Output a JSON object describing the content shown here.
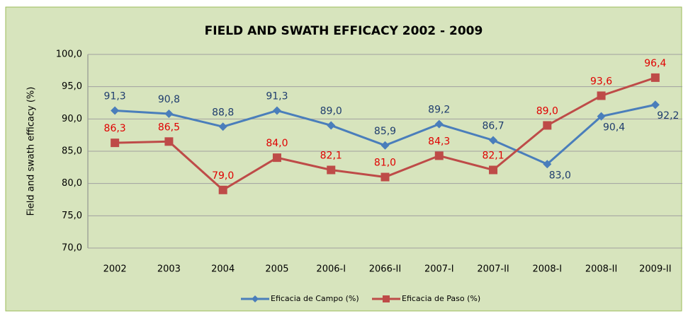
{
  "chart_data": {
    "type": "line",
    "title": "FIELD AND SWATH EFFICACY 2002 - 2009",
    "y_label": "Field and swath efficacy (%)",
    "categories": [
      "2002",
      "2003",
      "2004",
      "2005",
      "2006-I",
      "2066-II",
      "2007-I",
      "2007-II",
      "2008-I",
      "2008-II",
      "2009-II"
    ],
    "series": [
      {
        "name": "Eficacia de Campo (%)",
        "color": "#4a7ebb",
        "marker": "diamond",
        "values": [
          91.3,
          90.8,
          88.8,
          91.3,
          89.0,
          85.9,
          89.2,
          86.7,
          83.0,
          90.4,
          92.2
        ],
        "value_labels": [
          "91,3",
          "90,8",
          "88,8",
          "91,3",
          "89,0",
          "85,9",
          "89,2",
          "86,7",
          "83,0",
          "90,4",
          "92,2"
        ]
      },
      {
        "name": "Eficacia de Paso (%)",
        "color": "#be4b48",
        "marker": "square",
        "values": [
          86.3,
          86.5,
          79.0,
          84.0,
          82.1,
          81.0,
          84.3,
          82.1,
          89.0,
          93.6,
          96.4
        ],
        "value_labels": [
          "86,3",
          "86,5",
          "79,0",
          "84,0",
          "82,1",
          "81,0",
          "84,3",
          "82,1",
          "89,0",
          "93,6",
          "96,4"
        ]
      }
    ],
    "ylim": [
      70,
      100
    ],
    "yticks": [
      {
        "value": 70,
        "label": "70,0"
      },
      {
        "value": 75,
        "label": "75,0"
      },
      {
        "value": 80,
        "label": "80,0"
      },
      {
        "value": 85,
        "label": "85,0"
      },
      {
        "value": 90,
        "label": "90,0"
      },
      {
        "value": 95,
        "label": "95,0"
      },
      {
        "value": 100,
        "label": "100,0"
      }
    ],
    "grid": true,
    "legend": "bottom"
  }
}
